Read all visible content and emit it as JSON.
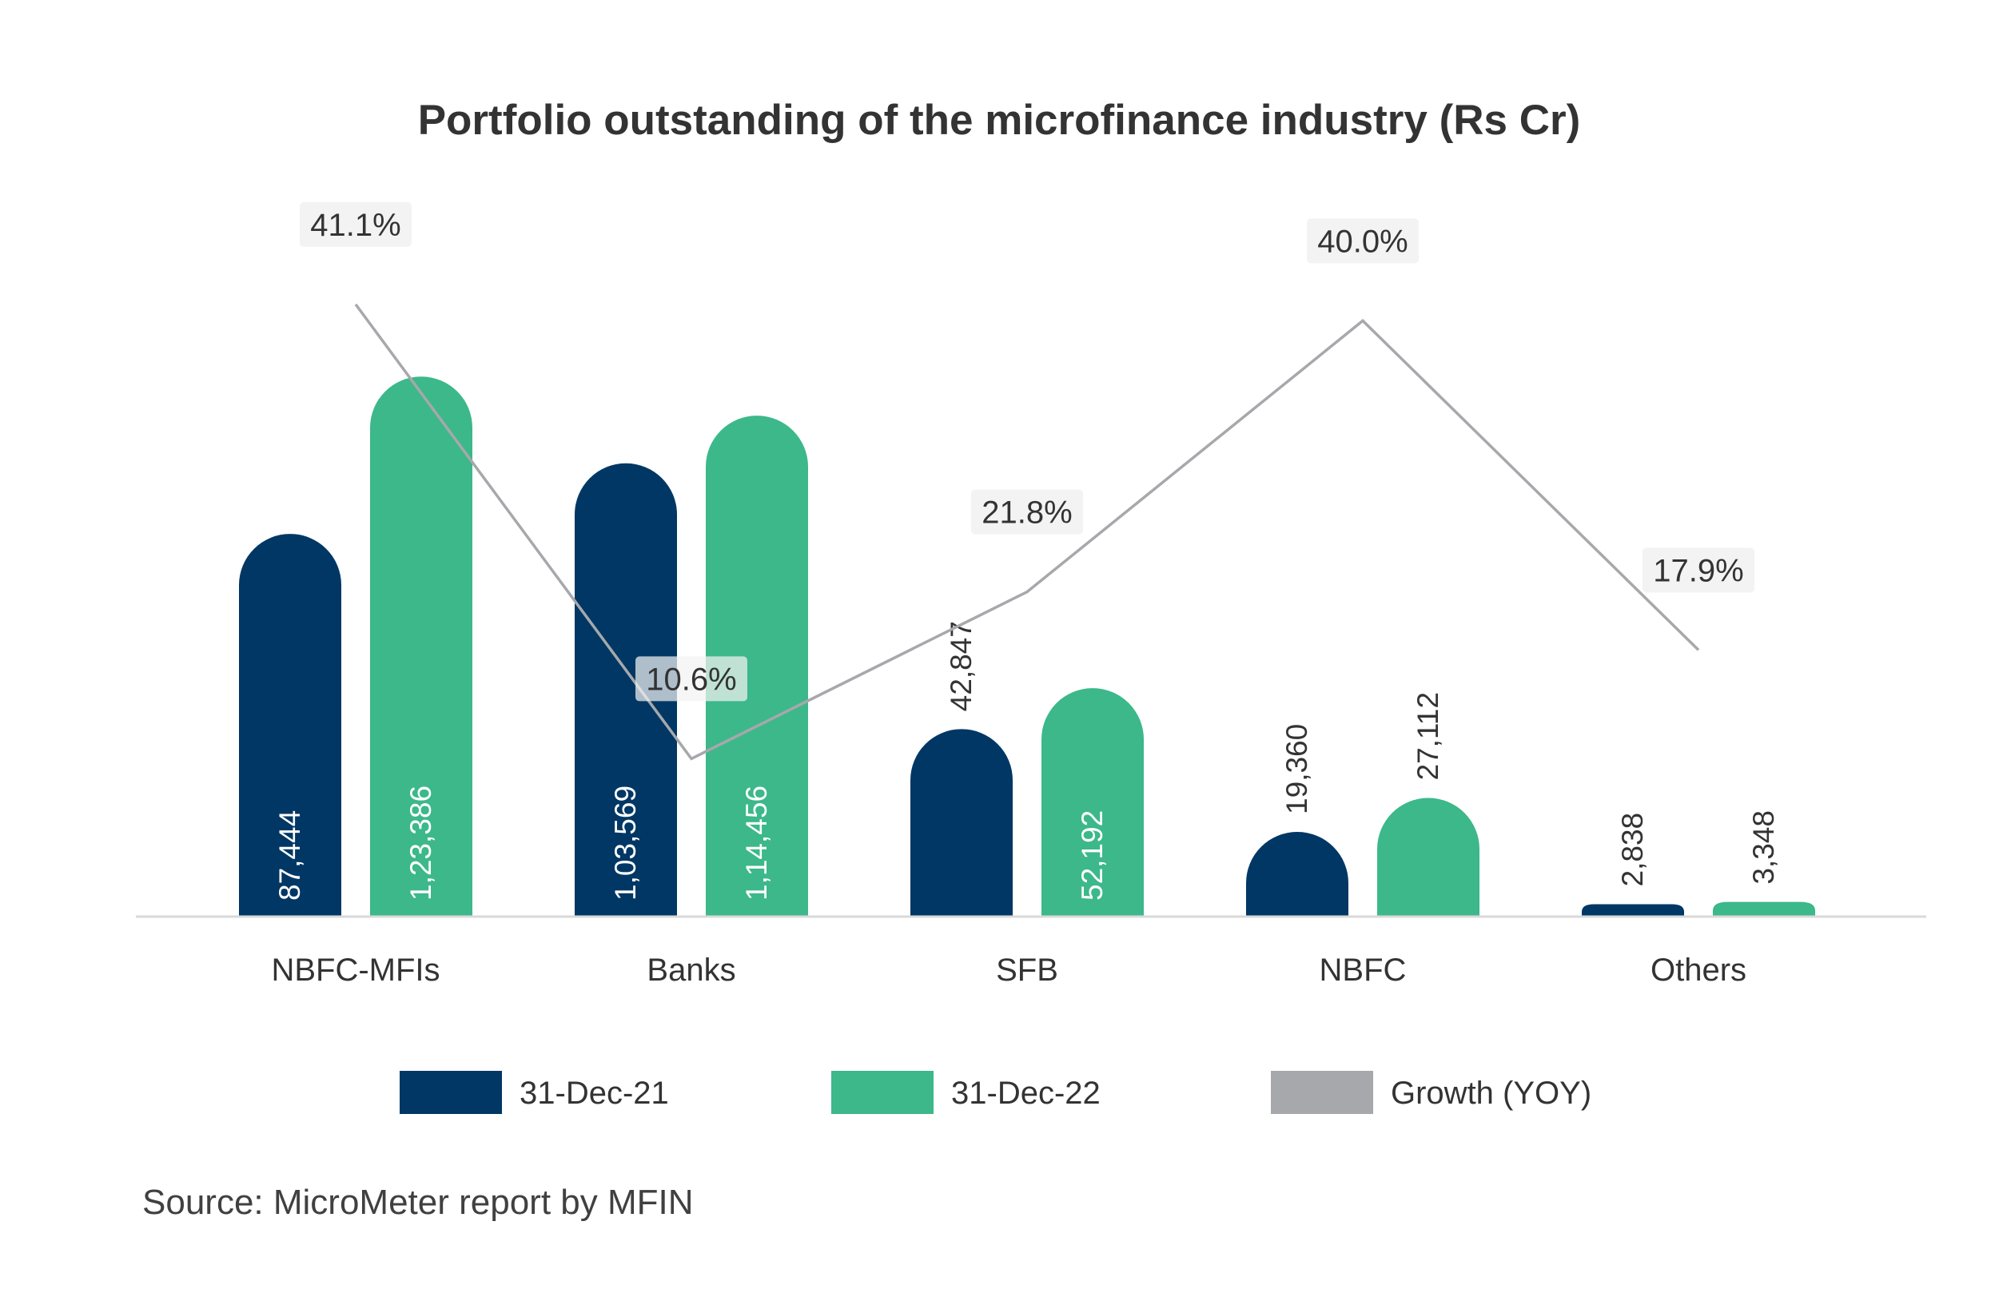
{
  "chart_data": {
    "type": "bar",
    "title": "Portfolio outstanding of the microfinance industry (Rs Cr)",
    "categories": [
      "NBFC-MFIs",
      "Banks",
      "SFB",
      "NBFC",
      "Others"
    ],
    "series": [
      {
        "name": "31-Dec-21",
        "color": "#003764",
        "values": [
          87444,
          103569,
          42847,
          19360,
          2838
        ],
        "labels": [
          "87,444",
          "1,03,569",
          "42,847",
          "19,360",
          "2,838"
        ]
      },
      {
        "name": "31-Dec-22",
        "color": "#3cb88a",
        "values": [
          123386,
          114456,
          52192,
          27112,
          3348
        ],
        "labels": [
          "1,23,386",
          "1,14,456",
          "52,192",
          "27,112",
          "3,348"
        ]
      }
    ],
    "growth": {
      "name": "Growth (YOY)",
      "color": "#a6a8ab",
      "values": [
        41.1,
        10.6,
        21.8,
        40.0,
        17.9
      ],
      "labels": [
        "41.1%",
        "10.6%",
        "21.8%",
        "40.0%",
        "17.9%"
      ]
    },
    "ylim": [
      0,
      130000
    ],
    "growth_ylim": [
      0,
      50
    ],
    "legend_position": "bottom",
    "grid": false
  },
  "source": "Source: MicroMeter report by MFIN"
}
